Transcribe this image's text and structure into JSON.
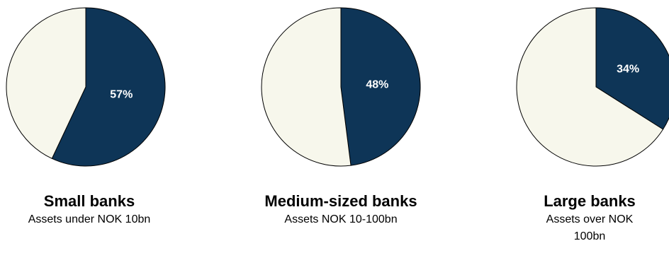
{
  "colors": {
    "share": "#0e3557",
    "rest": "#f7f7ec",
    "outline": "#000000",
    "label": "#ffffff"
  },
  "chart_data": [
    {
      "type": "pie",
      "title": "Small banks",
      "subtitle": "Assets under NOK 10bn",
      "slices": [
        {
          "value": 57,
          "label": "57%"
        },
        {
          "value": 43,
          "label": ""
        }
      ]
    },
    {
      "type": "pie",
      "title": "Medium-sized banks",
      "subtitle": "Assets NOK 10-100bn",
      "slices": [
        {
          "value": 48,
          "label": "48%"
        },
        {
          "value": 52,
          "label": ""
        }
      ]
    },
    {
      "type": "pie",
      "title": "Large banks",
      "subtitle": "Assets over NOK 100bn",
      "slices": [
        {
          "value": 34,
          "label": "34%"
        },
        {
          "value": 66,
          "label": ""
        }
      ]
    }
  ]
}
